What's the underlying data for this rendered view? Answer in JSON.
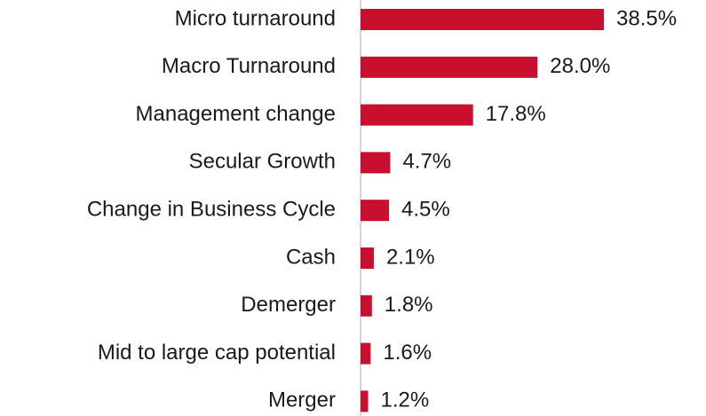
{
  "chart_data": {
    "type": "bar",
    "orientation": "horizontal",
    "categories": [
      "Micro turnaround",
      "Macro Turnaround",
      "Management change",
      "Secular Growth",
      "Change in Business Cycle",
      "Cash",
      "Demerger",
      "Mid to large cap potential",
      "Merger"
    ],
    "values": [
      38.5,
      28.0,
      17.8,
      4.7,
      4.5,
      2.1,
      1.8,
      1.6,
      1.2
    ],
    "value_labels": [
      "38.5%",
      "28.0%",
      "17.8%",
      "4.7%",
      "4.5%",
      "2.1%",
      "1.8%",
      "1.6%",
      "1.2%"
    ],
    "color": "#c8102e"
  }
}
